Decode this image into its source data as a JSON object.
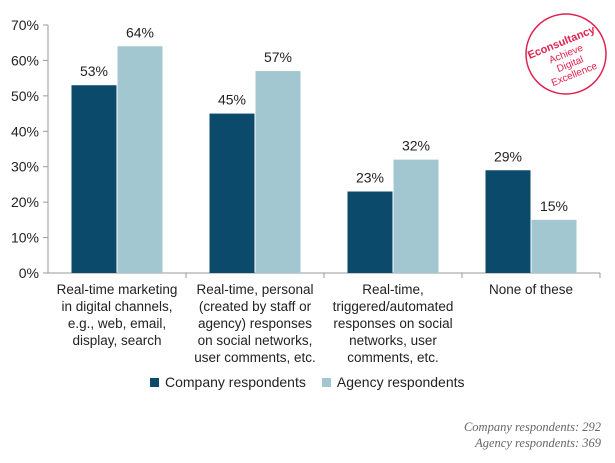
{
  "chart_data": {
    "type": "bar",
    "categories": [
      [
        "Real-time marketing",
        "in digital channels,",
        "e.g., web, email,",
        "display, search"
      ],
      [
        "Real-time, personal",
        "(created by staff or",
        "agency) responses",
        "on social networks,",
        "user comments, etc."
      ],
      [
        "Real-time,",
        "triggered/automated",
        "responses on social",
        "networks, user",
        "comments, etc."
      ],
      [
        "None of these"
      ]
    ],
    "series": [
      {
        "name": "Company respondents",
        "values": [
          53,
          45,
          23,
          29
        ],
        "color": "#0b4a6b"
      },
      {
        "name": "Agency respondents",
        "values": [
          64,
          57,
          32,
          15
        ],
        "color": "#a3c7d0"
      }
    ],
    "value_labels": {
      "series_0": [
        "53%",
        "45%",
        "23%",
        "29%"
      ],
      "series_1": [
        "64%",
        "57%",
        "32%",
        "15%"
      ]
    },
    "ylim": [
      0,
      70
    ],
    "yticks": [
      "0%",
      "10%",
      "20%",
      "30%",
      "40%",
      "50%",
      "60%",
      "70%"
    ],
    "ytick_values": [
      0,
      10,
      20,
      30,
      40,
      50,
      60,
      70
    ],
    "grid": false,
    "legend_position": "bottom"
  },
  "footnotes": [
    "Company respondents: 292",
    "Agency respondents: 369"
  ],
  "logo": {
    "lines": [
      "Econsultancy",
      "Achieve",
      "Digital",
      "Excellence"
    ],
    "color": "#e0224f"
  }
}
